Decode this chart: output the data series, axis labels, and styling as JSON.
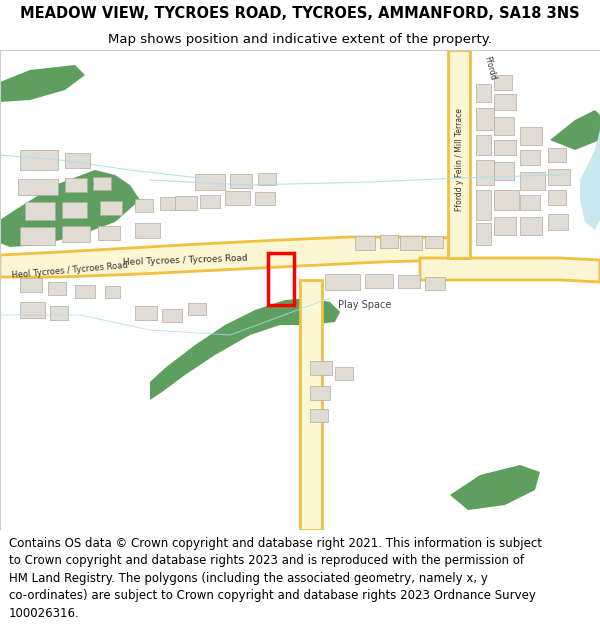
{
  "title_line1": "MEADOW VIEW, TYCROES ROAD, TYCROES, AMMANFORD, SA18 3NS",
  "title_line2": "Map shows position and indicative extent of the property.",
  "footer_text": "Contains OS data © Crown copyright and database right 2021. This information is subject to Crown copyright and database rights 2023 and is reproduced with the permission of HM Land Registry. The polygons (including the associated geometry, namely x, y co-ordinates) are subject to Crown copyright and database rights 2023 Ordnance Survey 100026316.",
  "title_fontsize": 10.5,
  "subtitle_fontsize": 9.5,
  "footer_fontsize": 8.5,
  "map_bg_color": "#ffffff",
  "road_fill_color": "#fdf6d3",
  "road_edge_color": "#f0c040",
  "road_edge_width": 2.0,
  "green_color": "#5e9e5e",
  "building_color": "#e0dcd4",
  "building_outline": "#b0aba0",
  "water_color": "#c8e8f0",
  "stream_color": "#b0dce8",
  "red_box_color": "#ff0000",
  "title_bg": "#ffffff",
  "footer_bg": "#ffffff",
  "border_color": "#cccccc"
}
